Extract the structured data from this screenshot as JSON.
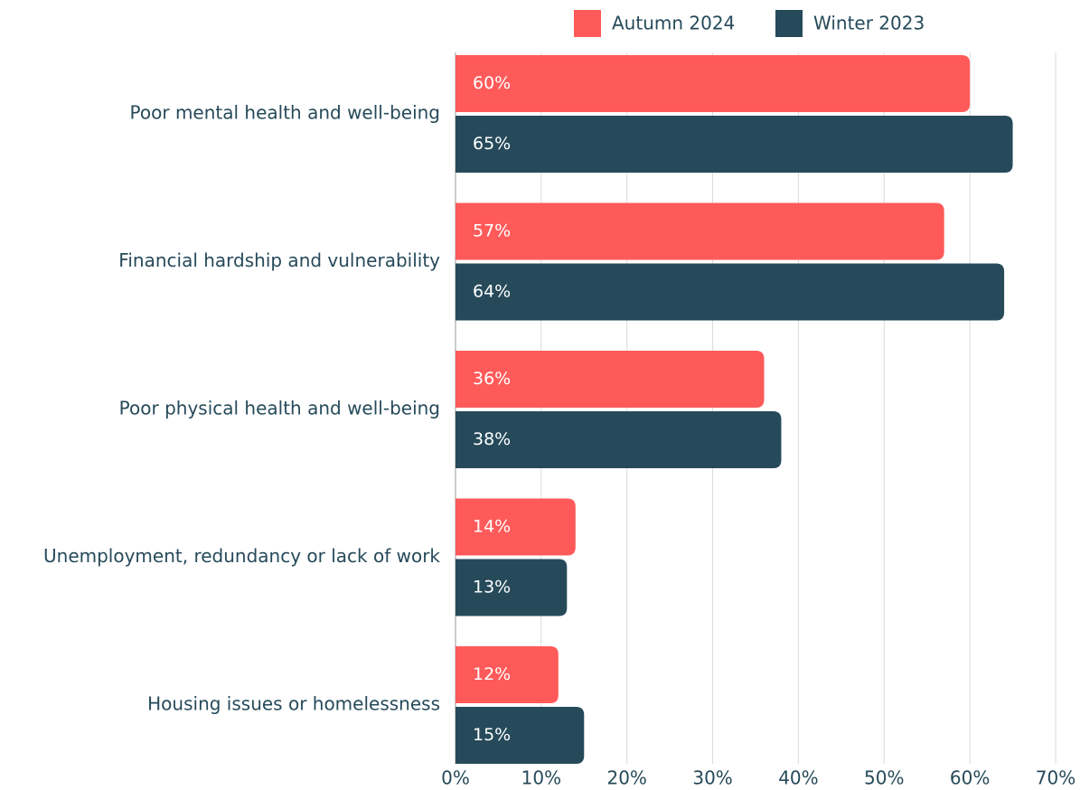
{
  "chart_data": {
    "type": "bar",
    "orientation": "horizontal",
    "categories": [
      "Poor mental health and well-being",
      "Financial hardship and vulnerability",
      "Poor physical health and well-being",
      "Unemployment, redundancy or lack of work",
      "Housing issues or homelessness"
    ],
    "series": [
      {
        "name": "Autumn 2024",
        "color": "#ff5a5a",
        "values": [
          60,
          57,
          36,
          14,
          12
        ],
        "value_labels": [
          "60%",
          "57%",
          "36%",
          "14%",
          "12%"
        ]
      },
      {
        "name": "Winter 2023",
        "color": "#264a5a",
        "values": [
          65,
          64,
          38,
          13,
          15
        ],
        "value_labels": [
          "65%",
          "64%",
          "38%",
          "13%",
          "15%"
        ]
      }
    ],
    "xlim": [
      0,
      70
    ],
    "xticks": [
      {
        "value": 0,
        "label": "0%"
      },
      {
        "value": 10,
        "label": "10%"
      },
      {
        "value": 20,
        "label": "20%"
      },
      {
        "value": 30,
        "label": "30%"
      },
      {
        "value": 40,
        "label": "40%"
      },
      {
        "value": 50,
        "label": "50%"
      },
      {
        "value": 60,
        "label": "60%"
      },
      {
        "value": 70,
        "label": "70%"
      }
    ],
    "grid": true,
    "legend": "top"
  }
}
